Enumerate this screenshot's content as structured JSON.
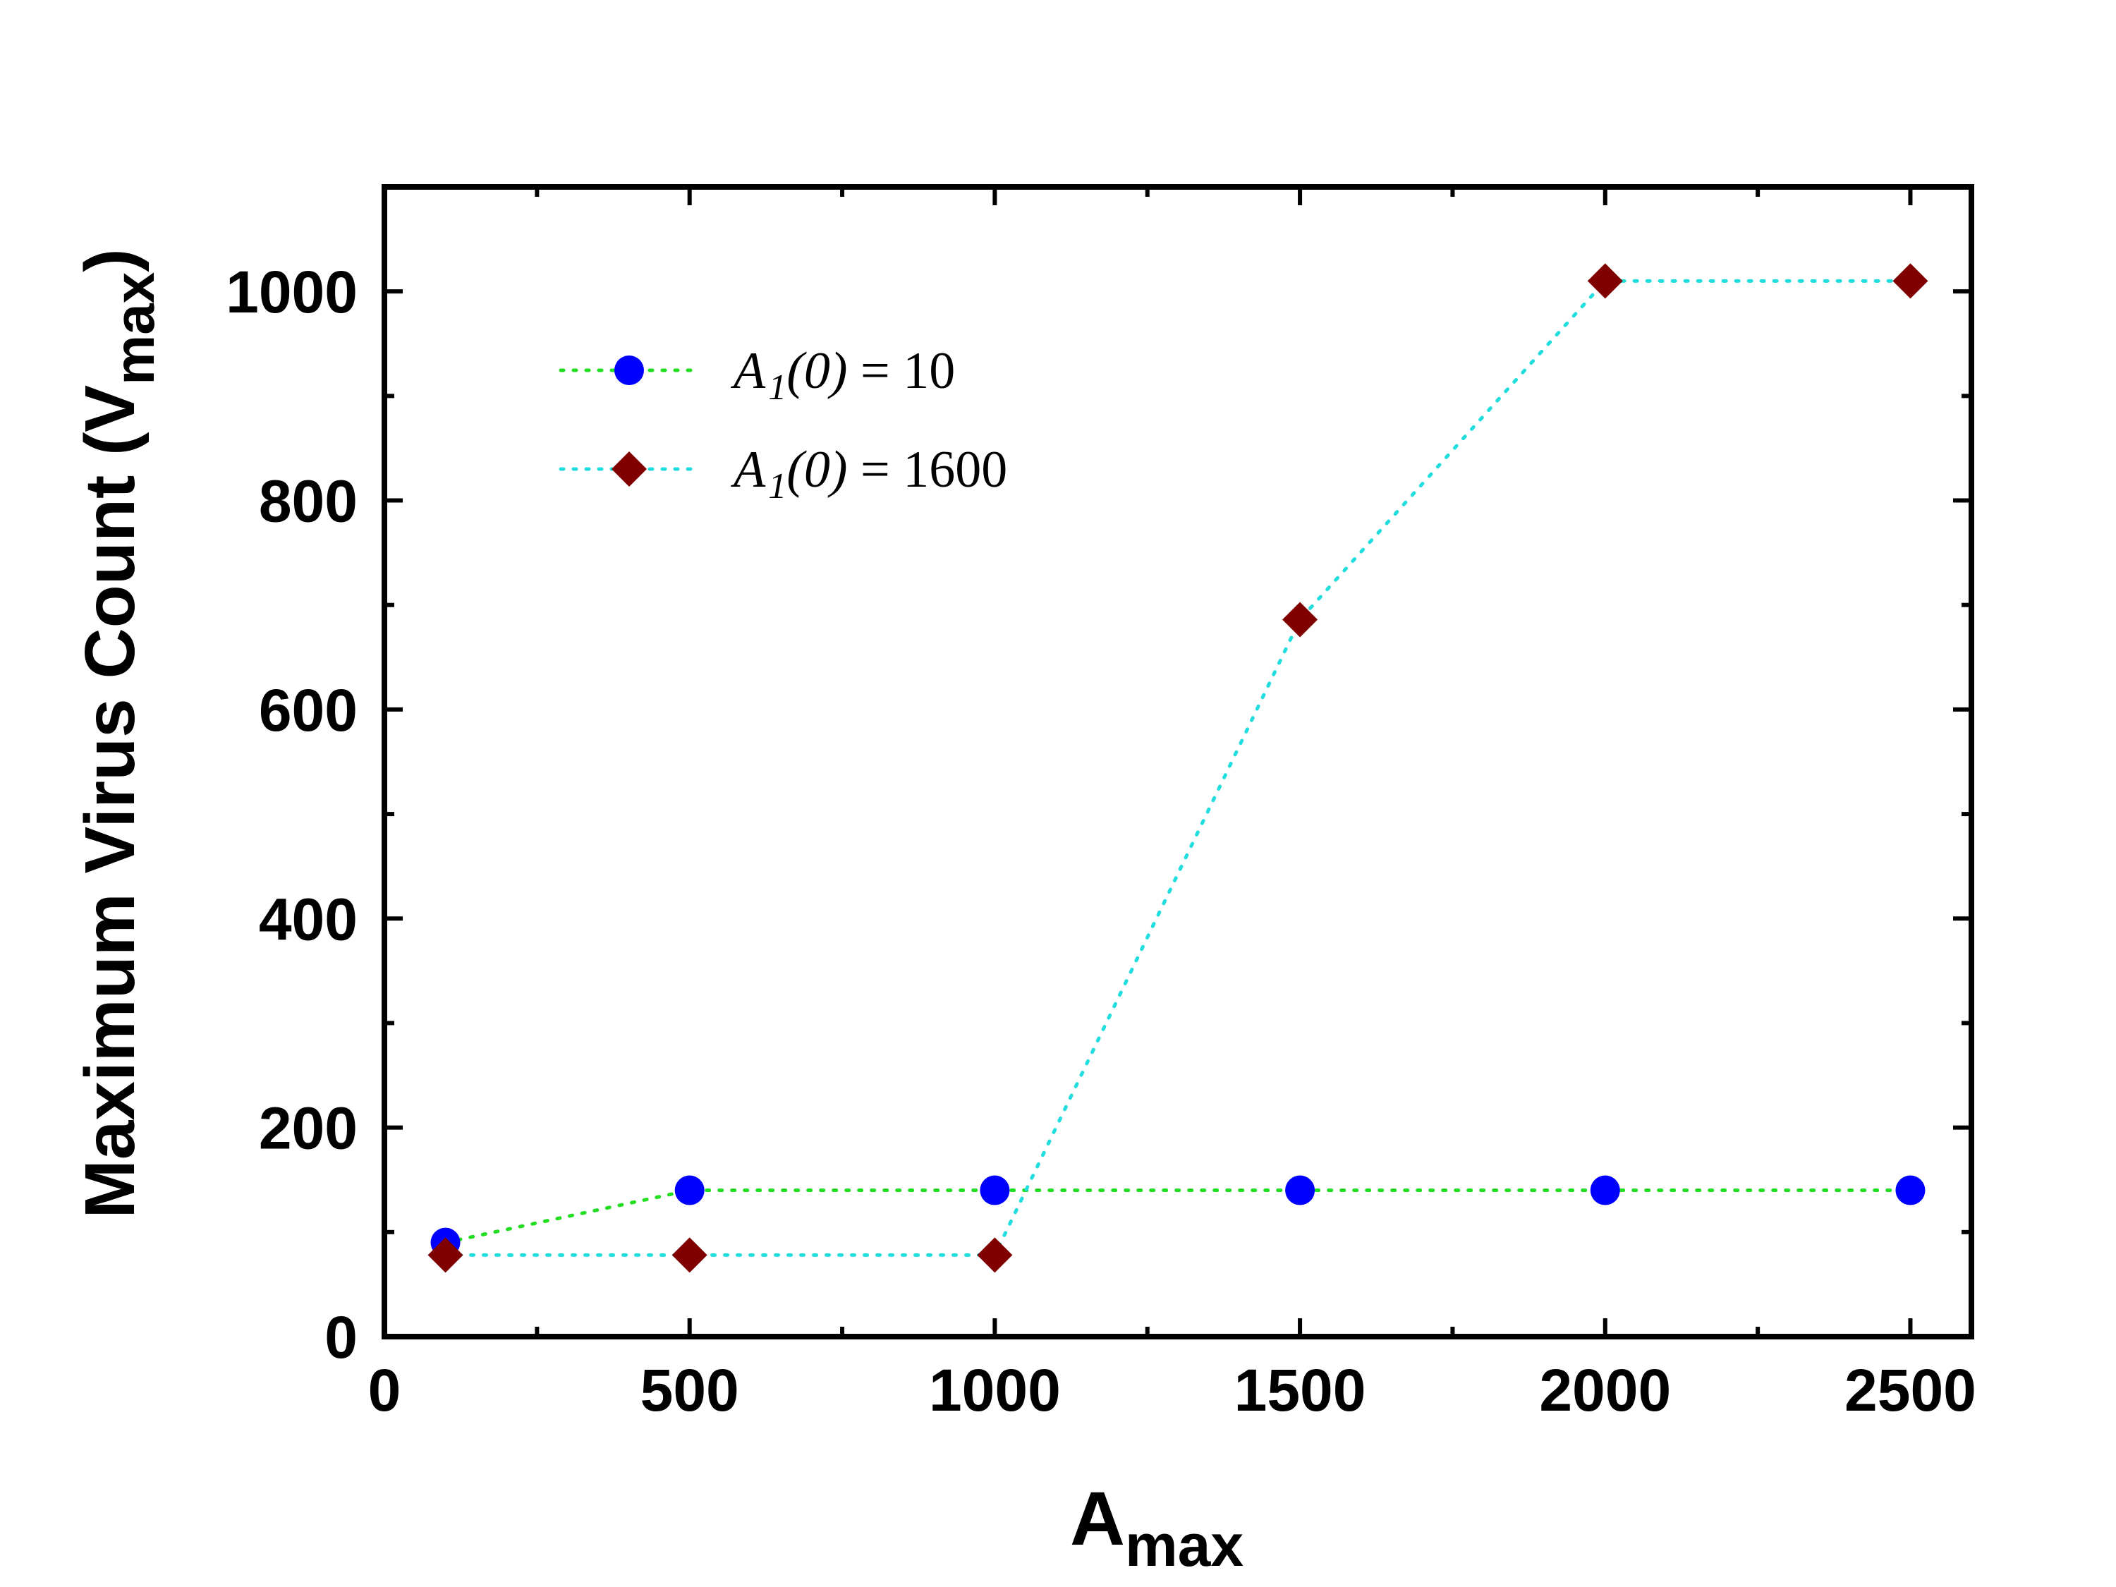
{
  "chart_data": {
    "type": "scatter",
    "xlabel": {
      "main": "A",
      "sub": "max"
    },
    "ylabel": {
      "main": "Maximum Virus Count (V",
      "sub": "max",
      "suffix": ")"
    },
    "xlim": [
      0,
      2600
    ],
    "ylim": [
      0,
      1100
    ],
    "xticks": [
      0,
      500,
      1000,
      1500,
      2000,
      2500
    ],
    "xtick_labels": [
      "0",
      "500",
      "1000",
      "1500",
      "2000",
      "2500"
    ],
    "yticks": [
      0,
      200,
      400,
      600,
      800,
      1000
    ],
    "ytick_labels": [
      "0",
      "200",
      "400",
      "600",
      "800",
      "1000"
    ],
    "grid": false,
    "legend_position": "top-left",
    "series": [
      {
        "name": "A1(0) = 10",
        "label": {
          "italic": "A",
          "sub": "1",
          "italic2": "(0)",
          "rest": " = 10"
        },
        "marker": "circle",
        "marker_color": "#0000ff",
        "line_color": "#22dd22",
        "line_style": "dotted",
        "x": [
          100,
          500,
          1000,
          1500,
          2000,
          2500
        ],
        "y": [
          90,
          140,
          140,
          140,
          140,
          140
        ]
      },
      {
        "name": "A1(0) = 1600",
        "label": {
          "italic": "A",
          "sub": "1",
          "italic2": "(0)",
          "rest": " = 1600"
        },
        "marker": "diamond",
        "marker_color": "#800000",
        "line_color": "#22dddd",
        "line_style": "dotted",
        "x": [
          100,
          500,
          1000,
          1500,
          2000,
          2500
        ],
        "y": [
          78,
          78,
          78,
          686,
          1010,
          1010
        ]
      }
    ]
  }
}
